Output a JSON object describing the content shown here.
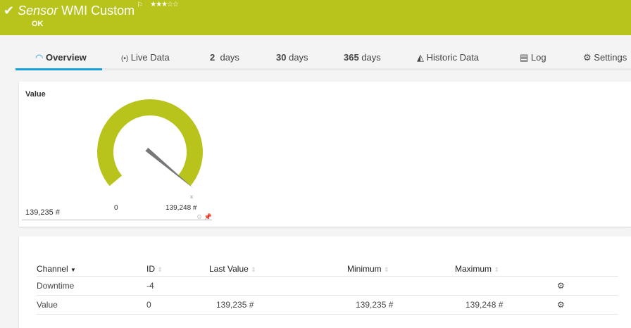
{
  "header": {
    "title_prefix": "Sensor",
    "title": "WMI Custom",
    "status": "OK",
    "priority_stars": "★★★☆☆",
    "priority": 3,
    "flag_icon": "flag-icon",
    "check_icon": "check-icon",
    "color": "#b8c41c"
  },
  "tabs": [
    {
      "label": "Overview",
      "icon": "gauge-icon",
      "active": true
    },
    {
      "label": "Live Data",
      "icon": "live-icon"
    },
    {
      "num": "2",
      "label": "days"
    },
    {
      "num": "30",
      "label": "days"
    },
    {
      "num": "365",
      "label": "days"
    },
    {
      "label": "Historic Data",
      "icon": "chart-icon"
    },
    {
      "label": "Log",
      "icon": "log-icon"
    },
    {
      "label": "Settings",
      "icon": "gear-icon"
    }
  ],
  "gauge": {
    "title": "Value",
    "current": "139,235 #",
    "min_label": "0",
    "max_label": "139,248 #",
    "min": 0,
    "max": 139248,
    "value": 139235,
    "color": "#b8c41c"
  },
  "table": {
    "headers": [
      "Channel",
      "ID",
      "Last Value",
      "Minimum",
      "Maximum"
    ],
    "rows": [
      {
        "channel": "Downtime",
        "id": "-4",
        "last": "",
        "min": "",
        "max": ""
      },
      {
        "channel": "Value",
        "id": "0",
        "last": "139,235 #",
        "min": "139,235 #",
        "max": "139,248 #"
      }
    ]
  }
}
